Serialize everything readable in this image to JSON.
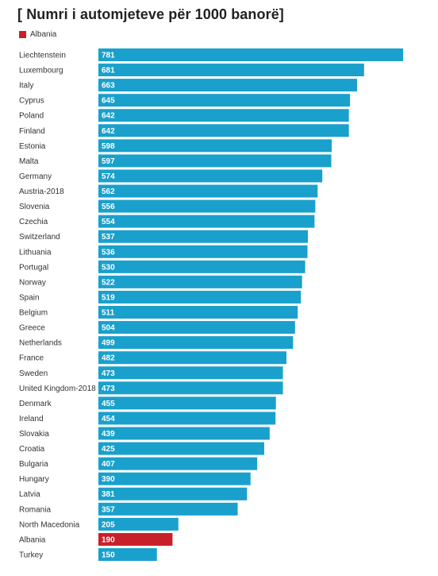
{
  "chart_data": {
    "type": "bar",
    "orientation": "horizontal",
    "title": "[ Numri i automjeteve për 1000 banorë]",
    "legend": {
      "label": "Albania",
      "color": "#c8202a",
      "placement": "top-left"
    },
    "colors": {
      "default": "#1aa0cc",
      "highlight": "#c8202a"
    },
    "xlim": [
      0,
      800
    ],
    "grid": false,
    "highlight_category": "Albania",
    "categories": [
      "Liechtenstein",
      "Luxembourg",
      "Italy",
      "Cyprus",
      "Poland",
      "Finland",
      "Estonia",
      "Malta",
      "Germany",
      "Austria-2018",
      "Slovenia",
      "Czechia",
      "Switzerland",
      "Lithuania",
      "Portugal",
      "Norway",
      "Spain",
      "Belgium",
      "Greece",
      "Netherlands",
      "France",
      "Sweden",
      "United Kingdom-2018",
      "Denmark",
      "Ireland",
      "Slovakia",
      "Croatia",
      "Bulgaria",
      "Hungary",
      "Latvia",
      "Romania",
      "North Macedonia",
      "Albania",
      "Turkey"
    ],
    "values": [
      781,
      681,
      663,
      645,
      642,
      642,
      598,
      597,
      574,
      562,
      556,
      554,
      537,
      536,
      530,
      522,
      519,
      511,
      504,
      499,
      482,
      473,
      473,
      455,
      454,
      439,
      425,
      407,
      390,
      381,
      357,
      205,
      190,
      150
    ]
  }
}
